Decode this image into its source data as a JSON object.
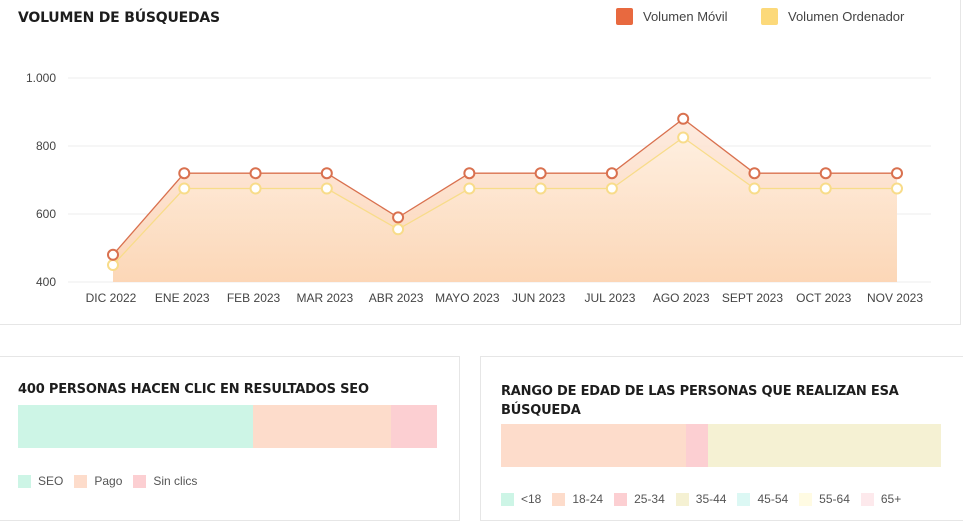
{
  "main": {
    "title": "VOLUMEN DE BÚSQUEDAS",
    "legend": [
      {
        "label": "Volumen Móvil",
        "color": "#e8693f"
      },
      {
        "label": "Volumen Ordenador",
        "color": "#fcd97a"
      }
    ]
  },
  "chart_data": [
    {
      "type": "area",
      "title": "VOLUMEN DE BÚSQUEDAS",
      "categories": [
        "DIC 2022",
        "ENE 2023",
        "FEB 2023",
        "MAR 2023",
        "ABR 2023",
        "MAYO 2023",
        "JUN 2023",
        "JUL 2023",
        "AGO 2023",
        "SEPT 2023",
        "OCT 2023",
        "NOV 2023"
      ],
      "series": [
        {
          "name": "Volumen Móvil",
          "color": "#d9714f",
          "values": [
            480,
            720,
            720,
            720,
            590,
            720,
            720,
            720,
            880,
            720,
            720,
            720
          ]
        },
        {
          "name": "Volumen Ordenador",
          "color": "#f8dc8a",
          "values": [
            450,
            675,
            675,
            675,
            555,
            675,
            675,
            675,
            825,
            675,
            675,
            675
          ]
        }
      ],
      "ylim": [
        400,
        1000
      ],
      "yticks": [
        "1.000",
        "800",
        "600",
        "400"
      ],
      "ytick_values": [
        1000,
        800,
        600,
        400
      ],
      "grid": true,
      "legend": "top-right"
    },
    {
      "type": "bar",
      "orientation": "horizontal-stacked",
      "title": "400 PERSONAS HACEN CLIC EN RESULTADOS SEO",
      "categories": [
        "SEO",
        "Pago",
        "Sin clics"
      ],
      "values": [
        56,
        33,
        11
      ],
      "colors": [
        "#cdf5e6",
        "#fddccb",
        "#fccfd2"
      ]
    },
    {
      "type": "bar",
      "orientation": "horizontal-stacked",
      "title": "RANGO DE EDAD DE LAS PERSONAS QUE REALIZAN ESA BÚSQUEDA",
      "categories": [
        "<18",
        "18-24",
        "25-34",
        "35-44",
        "45-54",
        "55-64",
        "65+"
      ],
      "values": [
        0,
        42,
        5,
        53,
        0,
        0,
        0
      ],
      "colors": [
        "#cdf5e6",
        "#fddccb",
        "#fccfd2",
        "#f5f1d3",
        "#dcf8f4",
        "#fffbe3",
        "#fde9ec"
      ]
    }
  ]
}
